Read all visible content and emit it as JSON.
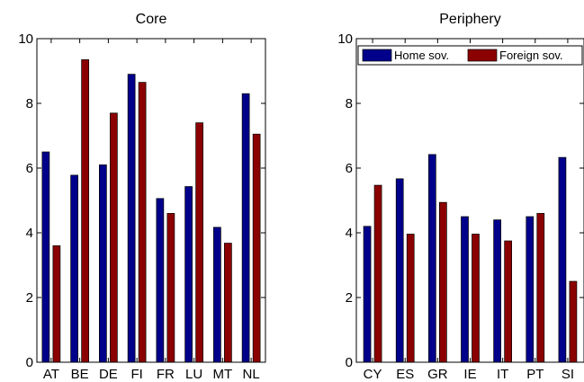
{
  "colors": {
    "home": "#00008b",
    "foreign": "#8b0000",
    "axis": "#000000",
    "background": "#ffffff"
  },
  "chart_data": [
    {
      "type": "bar",
      "title": "Core",
      "xlabel": "",
      "ylabel": "",
      "ylim": [
        0,
        10
      ],
      "yticks": [
        "0",
        "2",
        "4",
        "6",
        "8",
        "10"
      ],
      "grid": false,
      "categories": [
        "AT",
        "BE",
        "DE",
        "FI",
        "FR",
        "LU",
        "MT",
        "NL"
      ],
      "series": [
        {
          "values": [
            6.5,
            5.78,
            6.1,
            8.9,
            5.06,
            5.43,
            4.17,
            8.3
          ]
        },
        {
          "values": [
            3.6,
            9.35,
            7.7,
            8.65,
            4.6,
            7.4,
            3.68,
            7.05
          ]
        }
      ]
    },
    {
      "type": "bar",
      "title": "Periphery",
      "xlabel": "",
      "ylabel": "",
      "ylim": [
        0,
        10
      ],
      "yticks": [
        "0",
        "2",
        "4",
        "6",
        "8",
        "10"
      ],
      "grid": false,
      "legend_position": "top-right",
      "categories": [
        "CY",
        "ES",
        "GR",
        "IE",
        "IT",
        "PT",
        "SI"
      ],
      "series": [
        {
          "name": "Home sov.",
          "values": [
            4.2,
            5.67,
            6.42,
            4.5,
            4.4,
            4.5,
            6.33
          ]
        },
        {
          "name": "Foreign sov.",
          "values": [
            5.47,
            3.96,
            4.94,
            3.96,
            3.75,
            4.6,
            2.5
          ]
        }
      ]
    }
  ]
}
